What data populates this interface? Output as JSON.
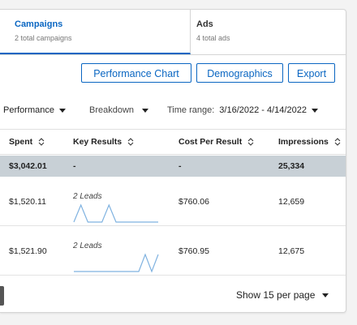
{
  "tabs": [
    {
      "title": "Campaigns",
      "subtitle": "2 total campaigns"
    },
    {
      "title": "Ads",
      "subtitle": "4 total ads"
    }
  ],
  "actions": {
    "performance_chart": "Performance Chart",
    "demographics": "Demographics",
    "export": "Export"
  },
  "filters": {
    "performance": "Performance",
    "breakdown": "Breakdown",
    "time_range_label": "Time range:",
    "time_range_value": "3/16/2022 - 4/14/2022"
  },
  "columns": [
    "Spent",
    "Key Results",
    "Cost Per Result",
    "Impressions"
  ],
  "totals": {
    "spent": "$3,042.01",
    "key_results": "-",
    "cost_per_result": "-",
    "impressions": "25,334"
  },
  "rows": [
    {
      "spent": "$1,520.11",
      "key_results": "2 Leads",
      "cost_per_result": "$760.06",
      "impressions": "12,659",
      "sparkline": [
        0,
        1,
        0,
        0,
        0,
        1,
        0,
        0,
        0,
        0,
        0,
        0,
        0
      ]
    },
    {
      "spent": "$1,521.90",
      "key_results": "2 Leads",
      "cost_per_result": "$760.95",
      "impressions": "12,675",
      "sparkline": [
        0,
        0,
        0,
        0,
        0,
        0,
        0,
        0,
        0,
        0,
        0,
        1,
        0,
        1
      ]
    }
  ],
  "footer": {
    "per_page": "Show 15 per page"
  },
  "colors": {
    "accent": "#0a66c2",
    "total_row": "#c8d0d6",
    "sparkline": "#7fb2e0"
  }
}
